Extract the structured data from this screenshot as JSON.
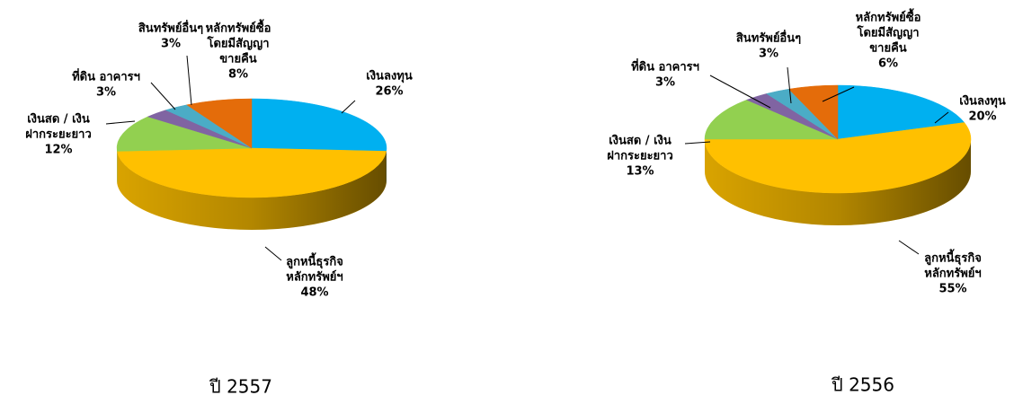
{
  "chart_data": [
    {
      "type": "pie3d",
      "caption": "ปี 2557",
      "categories": [
        [
          "เงินลงทุน"
        ],
        [
          "ลูกหนี้ธุรกิจ",
          "หลักทรัพย์ฯ"
        ],
        [
          "เงินสด / เงิน",
          "ฝากระยะยาว"
        ],
        [
          "ที่ดิน อาคารฯ"
        ],
        [
          "สินทรัพย์อื่นๆ"
        ],
        [
          "หลักทรัพย์ซื้อ",
          "โดยมีสัญญา",
          "ขายคืน"
        ]
      ],
      "values": [
        26,
        48,
        12,
        3,
        3,
        8
      ],
      "value_labels": [
        "26%",
        "48%",
        "12%",
        "3%",
        "3%",
        "8%"
      ],
      "colors": [
        "#00b0f0",
        "#ffc000",
        "#92d050",
        "#8064a2",
        "#4bacc6",
        "#e46c0a"
      ]
    },
    {
      "type": "pie3d",
      "caption": "ปี 2556",
      "categories": [
        [
          "เงินลงทุน"
        ],
        [
          "ลูกหนี้ธุรกิจ",
          "หลักทรัพย์ฯ"
        ],
        [
          "เงินสด / เงิน",
          "ฝากระยะยาว"
        ],
        [
          "ที่ดิน อาคารฯ"
        ],
        [
          "สินทรัพย์อื่นๆ"
        ],
        [
          "หลักทรัพย์ซื้อ",
          "โดยมีสัญญา",
          "ขายคืน"
        ]
      ],
      "values": [
        20,
        55,
        13,
        3,
        3,
        6
      ],
      "value_labels": [
        "20%",
        "55%",
        "13%",
        "3%",
        "3%",
        "6%"
      ],
      "colors": [
        "#00b0f0",
        "#ffc000",
        "#92d050",
        "#8064a2",
        "#4bacc6",
        "#e46c0a"
      ]
    }
  ]
}
